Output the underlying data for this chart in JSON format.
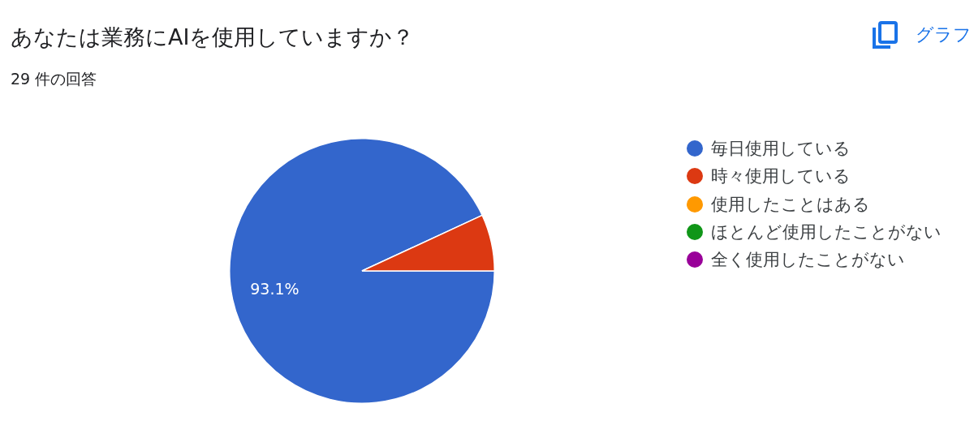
{
  "chart_data": {
    "type": "pie",
    "title": "あなたは業務にAIを使用していますか？",
    "subtitle": "29 件の回答",
    "categories": [
      "毎日使用している",
      "時々使用している",
      "使用したことはある",
      "ほとんど使用したことがない",
      "全く使用したことがない"
    ],
    "values": [
      93.1,
      6.9,
      0,
      0,
      0
    ],
    "colors": [
      "#3366cc",
      "#dc3912",
      "#ff9900",
      "#109618",
      "#990099"
    ],
    "value_labels": [
      "93.1%",
      null,
      null,
      null,
      null
    ],
    "legend": "right",
    "annotations": [
      "グラフ"
    ]
  }
}
